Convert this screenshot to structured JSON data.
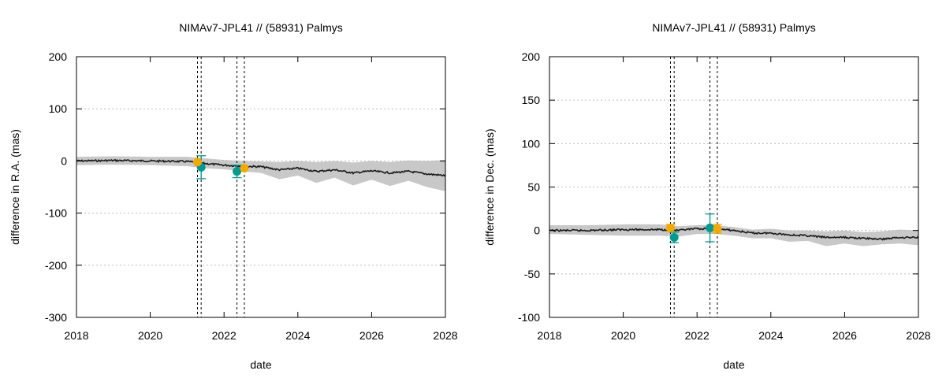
{
  "colors": {
    "band": "#c8c8c8",
    "line": "#1a1a1a",
    "teal": "#009a93",
    "orange": "#f5a800",
    "grid": "#bdbdbd"
  },
  "chart_data": [
    {
      "type": "line",
      "title": "NIMAv7-JPL41 // (58931) Palmys",
      "xlabel": "date",
      "ylabel": "difference in R.A. (mas)",
      "xlim": [
        2018,
        2028
      ],
      "ylim": [
        -300,
        200
      ],
      "xticks": [
        2018,
        2020,
        2022,
        2024,
        2026,
        2028
      ],
      "yticks": [
        -300,
        -200,
        -100,
        0,
        100,
        200
      ],
      "grid": "horizontal dotted",
      "vlines": [
        2021.28,
        2021.38,
        2022.35,
        2022.55
      ],
      "series": [
        {
          "style": "line with shaded uncertainty band",
          "x": [
            2018,
            2019,
            2020,
            2021,
            2021.5,
            2022,
            2022.5,
            2023,
            2023.5,
            2024,
            2024.5,
            2025,
            2025.5,
            2026,
            2026.5,
            2027,
            2027.5,
            2028
          ],
          "values": [
            0,
            1,
            0,
            -1,
            -5,
            -8,
            -10,
            -11,
            -17,
            -14,
            -20,
            -17,
            -23,
            -19,
            -23,
            -20,
            -25,
            -28
          ],
          "band_upper": [
            8,
            9,
            8,
            8,
            5,
            2,
            0,
            -1,
            -2,
            0,
            -2,
            0,
            -3,
            0,
            -2,
            1,
            0,
            2
          ],
          "band_lower": [
            -8,
            -7,
            -8,
            -10,
            -14,
            -16,
            -20,
            -23,
            -35,
            -28,
            -42,
            -32,
            -47,
            -36,
            -48,
            -38,
            -50,
            -58
          ]
        },
        {
          "style": "points with error bars",
          "color_key": "teal",
          "x": [
            2021.38,
            2022.35
          ],
          "values": [
            -12,
            -20
          ],
          "errors": [
            22,
            12
          ]
        },
        {
          "style": "points",
          "color_key": "orange",
          "x": [
            2021.28,
            2022.55
          ],
          "values": [
            -2,
            -14
          ]
        }
      ]
    },
    {
      "type": "line",
      "title": "NIMAv7-JPL41 // (58931) Palmys",
      "xlabel": "date",
      "ylabel": "difference in Dec. (mas)",
      "xlim": [
        2018,
        2028
      ],
      "ylim": [
        -100,
        200
      ],
      "xticks": [
        2018,
        2020,
        2022,
        2024,
        2026,
        2028
      ],
      "yticks": [
        -100,
        -50,
        0,
        50,
        100,
        150,
        200
      ],
      "grid": "horizontal dotted",
      "vlines": [
        2021.28,
        2021.38,
        2022.35,
        2022.55
      ],
      "series": [
        {
          "style": "line with shaded uncertainty band",
          "x": [
            2018,
            2019,
            2020,
            2021,
            2021.5,
            2022,
            2022.5,
            2023,
            2023.5,
            2024,
            2024.5,
            2025,
            2025.5,
            2026,
            2026.5,
            2027,
            2027.5,
            2028
          ],
          "values": [
            0,
            0,
            1,
            1,
            0,
            2,
            2,
            0,
            -3,
            -3,
            -5,
            -6,
            -8,
            -8,
            -9,
            -10,
            -8,
            -8
          ],
          "band_upper": [
            6,
            6,
            7,
            7,
            5,
            6,
            6,
            4,
            1,
            2,
            0,
            0,
            -1,
            0,
            -2,
            -1,
            1,
            0
          ],
          "band_lower": [
            -4,
            -5,
            -6,
            -6,
            -7,
            -4,
            -4,
            -6,
            -9,
            -9,
            -13,
            -12,
            -18,
            -15,
            -18,
            -16,
            -15,
            -17
          ]
        },
        {
          "style": "points with error bars",
          "color_key": "teal",
          "x": [
            2021.38,
            2022.35
          ],
          "values": [
            -8,
            3
          ],
          "errors": [
            6,
            16
          ]
        },
        {
          "style": "points",
          "color_key": "orange",
          "x": [
            2021.28,
            2022.55
          ],
          "values": [
            3,
            2
          ],
          "errors": [
            4,
            5
          ]
        }
      ]
    }
  ]
}
